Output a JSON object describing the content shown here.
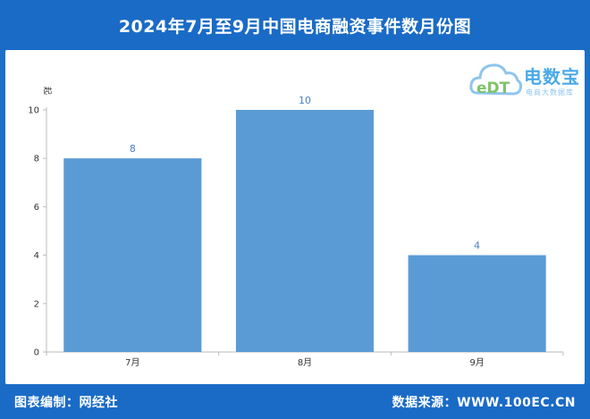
{
  "header": {
    "title": "2024年7月至9月中国电商融资事件数月份图"
  },
  "footer": {
    "left": "图表编制：网经社",
    "right": "数据来源：WWW.100EC.CN"
  },
  "logo": {
    "main": "电数宝",
    "sub": "电商大数据库",
    "mark": "eDT"
  },
  "colors": {
    "brand": "#1a6bc6",
    "bar": "#5b9bd5",
    "label": "#4a7fbf"
  },
  "chart_data": {
    "type": "bar",
    "categories": [
      "7月",
      "8月",
      "9月"
    ],
    "values": [
      8,
      10,
      4
    ],
    "title": "",
    "xlabel": "",
    "ylabel": "起",
    "ylim": [
      0,
      10
    ],
    "yticks": [
      0,
      2,
      4,
      6,
      8,
      10
    ],
    "grid": false,
    "legend": "none"
  }
}
